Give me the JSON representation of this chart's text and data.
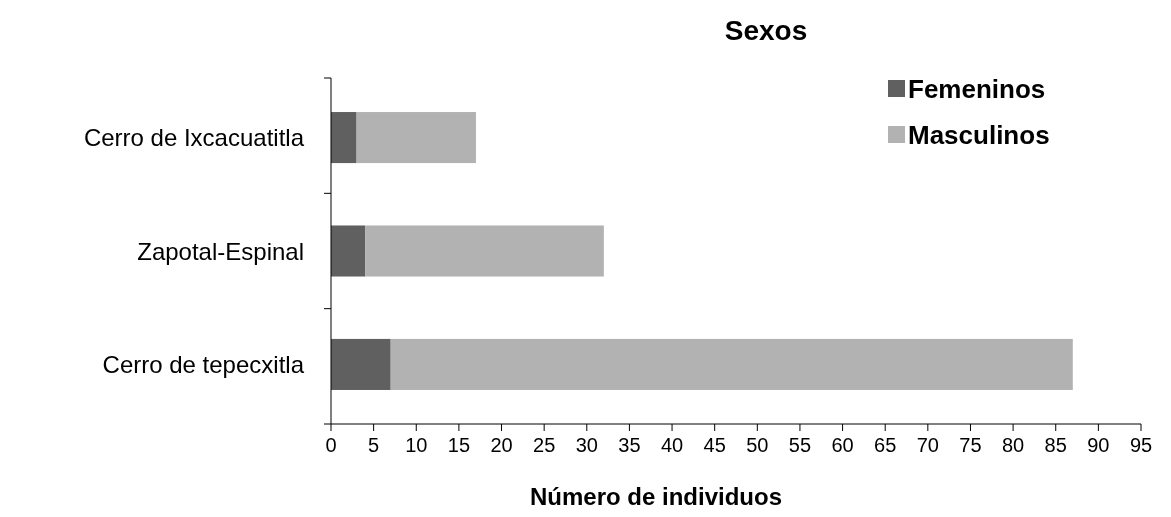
{
  "chart_data": {
    "type": "bar",
    "orientation": "horizontal",
    "stacked": true,
    "title": "Sexos",
    "xlabel": "Número de individuos",
    "categories": [
      "Cerro de Ixcacuatitla",
      "Zapotal-Espinal",
      "Cerro de tepecxitla"
    ],
    "series": [
      {
        "name": "Femeninos",
        "color": "#606060",
        "values": [
          3,
          4,
          7
        ]
      },
      {
        "name": "Masculinos",
        "color": "#b2b2b2",
        "values": [
          14,
          28,
          80
        ]
      }
    ],
    "xlim": [
      0,
      95
    ],
    "xticks": [
      0,
      5,
      10,
      15,
      20,
      25,
      30,
      35,
      40,
      45,
      50,
      55,
      60,
      65,
      70,
      75,
      80,
      85,
      90,
      95
    ],
    "legend": "top right",
    "grid": false
  }
}
